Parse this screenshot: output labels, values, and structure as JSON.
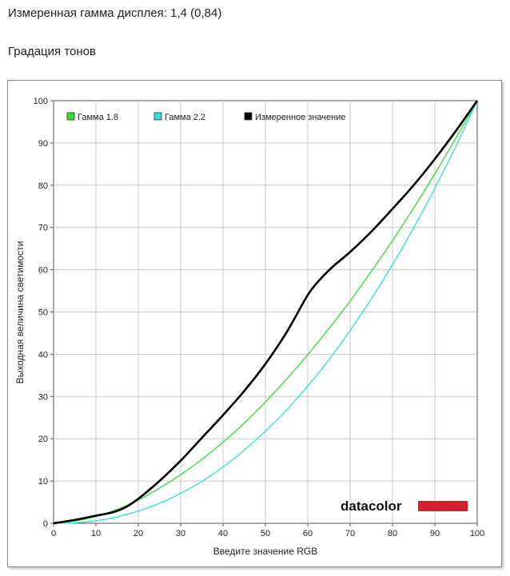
{
  "header": {
    "measured_gamma": "Измеренная гамма дисплея: 1,4 (0,84)",
    "section_title": "Градация тонов"
  },
  "logo": {
    "text": "datacolor",
    "bar_color": "#d3202f"
  },
  "chart_data": {
    "type": "line",
    "xlabel": "Введите значение RGB",
    "ylabel": "Выходная величина светимости",
    "xlim": [
      0,
      100
    ],
    "ylim": [
      0,
      100
    ],
    "xticks": [
      0,
      10,
      20,
      30,
      40,
      50,
      60,
      70,
      80,
      90,
      100
    ],
    "yticks": [
      0,
      10,
      20,
      30,
      40,
      50,
      60,
      70,
      80,
      90,
      100
    ],
    "grid": true,
    "legend_position": "top-left",
    "series": [
      {
        "name": "Гамма 1.8",
        "color": "#33dd33",
        "x": [
          0,
          5,
          10,
          15,
          20,
          25,
          30,
          35,
          40,
          45,
          50,
          55,
          60,
          65,
          70,
          75,
          80,
          85,
          90,
          95,
          100
        ],
        "y": [
          0,
          0.5,
          1.6,
          3.3,
          5.5,
          8.3,
          11.5,
          15.1,
          19.2,
          23.7,
          28.7,
          34.1,
          39.9,
          46.1,
          52.6,
          59.6,
          66.9,
          74.6,
          82.7,
          91.2,
          100
        ]
      },
      {
        "name": "Гамма 2.2",
        "color": "#33dddd",
        "x": [
          0,
          5,
          10,
          15,
          20,
          25,
          30,
          35,
          40,
          45,
          50,
          55,
          60,
          65,
          70,
          75,
          80,
          85,
          90,
          95,
          100
        ],
        "y": [
          0,
          0.1,
          0.6,
          1.5,
          2.9,
          4.7,
          7.1,
          9.9,
          13.3,
          17.3,
          21.8,
          26.8,
          32.5,
          38.7,
          45.6,
          53.1,
          61.2,
          69.9,
          79.3,
          89.3,
          100
        ]
      },
      {
        "name": "Измеренное значение",
        "color": "#000000",
        "x": [
          0,
          5,
          10,
          14,
          17,
          20,
          25,
          30,
          35,
          40,
          45,
          50,
          55,
          60,
          63,
          66,
          70,
          75,
          80,
          85,
          90,
          95,
          100
        ],
        "y": [
          0,
          0.8,
          1.8,
          2.6,
          3.8,
          5.8,
          10,
          14.8,
          20.2,
          25.6,
          31.3,
          37.7,
          45.2,
          54,
          57.8,
          60.8,
          64.2,
          69,
          74.4,
          80,
          86.2,
          92.9,
          100
        ]
      }
    ]
  }
}
